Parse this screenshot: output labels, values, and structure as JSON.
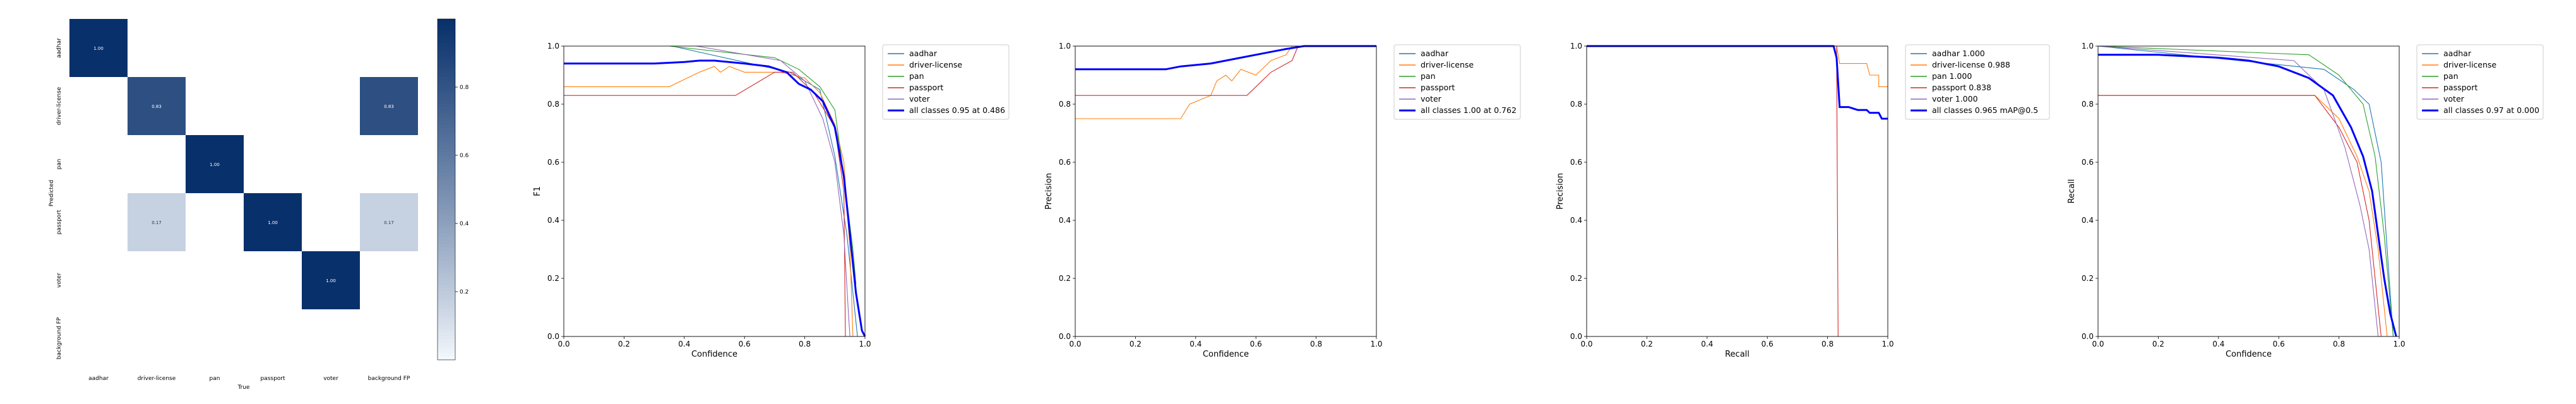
{
  "chart_data": [
    {
      "type": "heatmap",
      "xlabel": "True",
      "ylabel": "Predicted",
      "categories": [
        "aadhar",
        "driver-license",
        "pan",
        "passport",
        "voter",
        "background FP"
      ],
      "cells": [
        {
          "row": 0,
          "col": 0,
          "value": 1.0,
          "label": "1.00"
        },
        {
          "row": 1,
          "col": 1,
          "value": 0.83,
          "label": "0.83"
        },
        {
          "row": 1,
          "col": 5,
          "value": 0.83,
          "label": "0.83"
        },
        {
          "row": 2,
          "col": 2,
          "value": 1.0,
          "label": "1.00"
        },
        {
          "row": 3,
          "col": 1,
          "value": 0.17,
          "label": "0.17"
        },
        {
          "row": 3,
          "col": 3,
          "value": 1.0,
          "label": "1.00"
        },
        {
          "row": 3,
          "col": 5,
          "value": 0.17,
          "label": "0.17"
        },
        {
          "row": 4,
          "col": 4,
          "value": 1.0,
          "label": "1.00"
        }
      ],
      "colorbar": {
        "ticks": [
          "0.2",
          "0.4",
          "0.6",
          "0.8"
        ],
        "tick_values": [
          0.2,
          0.4,
          0.6,
          0.8
        ],
        "range": [
          0,
          1
        ]
      },
      "colors": {
        "low": "#f7fbff",
        "high": "#08306b"
      }
    },
    {
      "type": "line",
      "xlabel": "Confidence",
      "ylabel": "F1",
      "xlim": [
        0,
        1
      ],
      "ylim": [
        0,
        1
      ],
      "xticks": [
        "0.0",
        "0.2",
        "0.4",
        "0.6",
        "0.8",
        "1.0"
      ],
      "yticks": [
        "0.0",
        "0.2",
        "0.4",
        "0.6",
        "0.8",
        "1.0"
      ],
      "legend_position": "outside-right",
      "series": [
        {
          "name": "aadhar",
          "color": "#1f77b4",
          "points": [
            [
              0.36,
              1.0
            ],
            [
              0.75,
              0.91
            ],
            [
              0.85,
              0.85
            ],
            [
              0.9,
              0.62
            ],
            [
              0.94,
              0.35
            ],
            [
              0.96,
              0.15
            ],
            [
              0.975,
              0.0
            ]
          ]
        },
        {
          "name": "driver-license",
          "color": "#ff7f0e",
          "points": [
            [
              0,
              0.86
            ],
            [
              0.35,
              0.86
            ],
            [
              0.45,
              0.91
            ],
            [
              0.5,
              0.93
            ],
            [
              0.52,
              0.91
            ],
            [
              0.55,
              0.93
            ],
            [
              0.6,
              0.91
            ],
            [
              0.72,
              0.91
            ],
            [
              0.8,
              0.89
            ],
            [
              0.85,
              0.84
            ],
            [
              0.9,
              0.73
            ],
            [
              0.93,
              0.6
            ],
            [
              0.95,
              0.3
            ],
            [
              0.96,
              0.0
            ]
          ]
        },
        {
          "name": "pan",
          "color": "#2ca02c",
          "points": [
            [
              0.35,
              1.0
            ],
            [
              0.7,
              0.96
            ],
            [
              0.78,
              0.92
            ],
            [
              0.85,
              0.86
            ],
            [
              0.9,
              0.78
            ],
            [
              0.93,
              0.55
            ],
            [
              0.96,
              0.3
            ],
            [
              0.97,
              0.18
            ]
          ]
        },
        {
          "name": "passport",
          "color": "#d62728",
          "points": [
            [
              0,
              0.83
            ],
            [
              0.57,
              0.83
            ],
            [
              0.7,
              0.91
            ],
            [
              0.76,
              0.91
            ],
            [
              0.83,
              0.84
            ],
            [
              0.9,
              0.72
            ],
            [
              0.93,
              0.5
            ],
            [
              0.935,
              0.0
            ]
          ]
        },
        {
          "name": "voter",
          "color": "#9467bd",
          "points": [
            [
              0.44,
              1.0
            ],
            [
              0.72,
              0.95
            ],
            [
              0.8,
              0.88
            ],
            [
              0.86,
              0.75
            ],
            [
              0.9,
              0.6
            ],
            [
              0.93,
              0.35
            ],
            [
              0.945,
              0.08
            ],
            [
              0.95,
              0.0
            ]
          ]
        }
      ],
      "summary": {
        "name": "all classes 0.95 at 0.486",
        "color": "#0000ff",
        "points": [
          [
            0,
            0.94
          ],
          [
            0.1,
            0.94
          ],
          [
            0.2,
            0.94
          ],
          [
            0.3,
            0.94
          ],
          [
            0.4,
            0.945
          ],
          [
            0.45,
            0.95
          ],
          [
            0.5,
            0.95
          ],
          [
            0.6,
            0.94
          ],
          [
            0.68,
            0.93
          ],
          [
            0.74,
            0.91
          ],
          [
            0.78,
            0.87
          ],
          [
            0.82,
            0.85
          ],
          [
            0.86,
            0.81
          ],
          [
            0.9,
            0.72
          ],
          [
            0.93,
            0.55
          ],
          [
            0.95,
            0.35
          ],
          [
            0.97,
            0.15
          ],
          [
            0.99,
            0.02
          ],
          [
            1.0,
            0.0
          ]
        ]
      }
    },
    {
      "type": "line",
      "xlabel": "Confidence",
      "ylabel": "Precision",
      "xlim": [
        0,
        1
      ],
      "ylim": [
        0,
        1
      ],
      "xticks": [
        "0.0",
        "0.2",
        "0.4",
        "0.6",
        "0.8",
        "1.0"
      ],
      "yticks": [
        "0.0",
        "0.2",
        "0.4",
        "0.6",
        "0.8",
        "1.0"
      ],
      "legend_position": "outside-right",
      "series": [
        {
          "name": "aadhar",
          "color": "#1f77b4",
          "points": [
            [
              0,
              1.0
            ],
            [
              1.0,
              1.0
            ]
          ]
        },
        {
          "name": "driver-license",
          "color": "#ff7f0e",
          "points": [
            [
              0,
              0.75
            ],
            [
              0.35,
              0.75
            ],
            [
              0.38,
              0.8
            ],
            [
              0.45,
              0.83
            ],
            [
              0.47,
              0.88
            ],
            [
              0.5,
              0.9
            ],
            [
              0.52,
              0.88
            ],
            [
              0.55,
              0.92
            ],
            [
              0.6,
              0.9
            ],
            [
              0.65,
              0.95
            ],
            [
              0.7,
              0.97
            ],
            [
              0.72,
              1.0
            ],
            [
              1.0,
              1.0
            ]
          ]
        },
        {
          "name": "pan",
          "color": "#2ca02c",
          "points": [
            [
              0,
              1.0
            ],
            [
              1.0,
              1.0
            ]
          ]
        },
        {
          "name": "passport",
          "color": "#d62728",
          "points": [
            [
              0,
              0.83
            ],
            [
              0.57,
              0.83
            ],
            [
              0.65,
              0.91
            ],
            [
              0.72,
              0.95
            ],
            [
              0.74,
              1.0
            ],
            [
              1.0,
              1.0
            ]
          ]
        },
        {
          "name": "voter",
          "color": "#9467bd",
          "points": [
            [
              0,
              1.0
            ],
            [
              1.0,
              1.0
            ]
          ]
        }
      ],
      "summary": {
        "name": "all classes 1.00 at 0.762",
        "color": "#0000ff",
        "points": [
          [
            0,
            0.92
          ],
          [
            0.3,
            0.92
          ],
          [
            0.35,
            0.93
          ],
          [
            0.45,
            0.94
          ],
          [
            0.55,
            0.96
          ],
          [
            0.65,
            0.98
          ],
          [
            0.7,
            0.99
          ],
          [
            0.76,
            1.0
          ],
          [
            1.0,
            1.0
          ]
        ]
      }
    },
    {
      "type": "line",
      "xlabel": "Recall",
      "ylabel": "Precision",
      "xlim": [
        0,
        1
      ],
      "ylim": [
        0,
        1
      ],
      "xticks": [
        "0.0",
        "0.2",
        "0.4",
        "0.6",
        "0.8",
        "1.0"
      ],
      "yticks": [
        "0.0",
        "0.2",
        "0.4",
        "0.6",
        "0.8",
        "1.0"
      ],
      "legend_position": "outside-right",
      "series": [
        {
          "name": "aadhar 1.000",
          "color": "#1f77b4",
          "points": [
            [
              0,
              1.0
            ],
            [
              1.0,
              1.0
            ]
          ]
        },
        {
          "name": "driver-license 0.988",
          "color": "#ff7f0e",
          "points": [
            [
              0,
              1.0
            ],
            [
              0.83,
              1.0
            ],
            [
              0.84,
              0.94
            ],
            [
              0.93,
              0.94
            ],
            [
              0.94,
              0.9
            ],
            [
              0.97,
              0.9
            ],
            [
              0.97,
              0.86
            ],
            [
              1.0,
              0.86
            ]
          ]
        },
        {
          "name": "pan 1.000",
          "color": "#2ca02c",
          "points": [
            [
              0,
              1.0
            ],
            [
              1.0,
              1.0
            ]
          ]
        },
        {
          "name": "passport 0.838",
          "color": "#d62728",
          "points": [
            [
              0,
              1.0
            ],
            [
              0.83,
              1.0
            ],
            [
              0.835,
              0.0
            ]
          ]
        },
        {
          "name": "voter 1.000",
          "color": "#9467bd",
          "points": [
            [
              0,
              1.0
            ],
            [
              1.0,
              1.0
            ]
          ]
        }
      ],
      "summary": {
        "name": "all classes 0.965 mAP@0.5",
        "color": "#0000ff",
        "points": [
          [
            0,
            1.0
          ],
          [
            0.8,
            1.0
          ],
          [
            0.82,
            1.0
          ],
          [
            0.83,
            0.96
          ],
          [
            0.84,
            0.79
          ],
          [
            0.87,
            0.79
          ],
          [
            0.9,
            0.78
          ],
          [
            0.93,
            0.78
          ],
          [
            0.94,
            0.77
          ],
          [
            0.97,
            0.77
          ],
          [
            0.98,
            0.75
          ],
          [
            1.0,
            0.75
          ]
        ]
      }
    },
    {
      "type": "line",
      "xlabel": "Confidence",
      "ylabel": "Recall",
      "xlim": [
        0,
        1
      ],
      "ylim": [
        0,
        1
      ],
      "xticks": [
        "0.0",
        "0.2",
        "0.4",
        "0.6",
        "0.8",
        "1.0"
      ],
      "yticks": [
        "0.0",
        "0.2",
        "0.4",
        "0.6",
        "0.8",
        "1.0"
      ],
      "legend_position": "outside-right",
      "series": [
        {
          "name": "aadhar",
          "color": "#1f77b4",
          "points": [
            [
              0,
              1.0
            ],
            [
              0.75,
              0.92
            ],
            [
              0.85,
              0.85
            ],
            [
              0.9,
              0.8
            ],
            [
              0.94,
              0.6
            ],
            [
              0.96,
              0.3
            ],
            [
              0.98,
              0.0
            ]
          ]
        },
        {
          "name": "driver-license",
          "color": "#ff7f0e",
          "points": [
            [
              0,
              0.83
            ],
            [
              0.72,
              0.83
            ],
            [
              0.8,
              0.75
            ],
            [
              0.86,
              0.62
            ],
            [
              0.9,
              0.5
            ],
            [
              0.93,
              0.3
            ],
            [
              0.96,
              0.0
            ]
          ]
        },
        {
          "name": "pan",
          "color": "#2ca02c",
          "points": [
            [
              0,
              1.0
            ],
            [
              0.7,
              0.97
            ],
            [
              0.8,
              0.9
            ],
            [
              0.88,
              0.8
            ],
            [
              0.92,
              0.62
            ],
            [
              0.95,
              0.35
            ],
            [
              0.98,
              0.0
            ]
          ]
        },
        {
          "name": "passport",
          "color": "#d62728",
          "points": [
            [
              0,
              0.83
            ],
            [
              0.72,
              0.83
            ],
            [
              0.8,
              0.72
            ],
            [
              0.86,
              0.6
            ],
            [
              0.9,
              0.4
            ],
            [
              0.93,
              0.1
            ],
            [
              0.94,
              0.0
            ]
          ]
        },
        {
          "name": "voter",
          "color": "#9467bd",
          "points": [
            [
              0,
              1.0
            ],
            [
              0.65,
              0.95
            ],
            [
              0.75,
              0.85
            ],
            [
              0.82,
              0.65
            ],
            [
              0.87,
              0.45
            ],
            [
              0.9,
              0.3
            ],
            [
              0.92,
              0.1
            ],
            [
              0.93,
              0.0
            ]
          ]
        }
      ],
      "summary": {
        "name": "all classes 0.97 at 0.000",
        "color": "#0000ff",
        "points": [
          [
            0,
            0.97
          ],
          [
            0.2,
            0.97
          ],
          [
            0.4,
            0.96
          ],
          [
            0.5,
            0.95
          ],
          [
            0.6,
            0.93
          ],
          [
            0.7,
            0.89
          ],
          [
            0.78,
            0.83
          ],
          [
            0.84,
            0.72
          ],
          [
            0.88,
            0.62
          ],
          [
            0.91,
            0.5
          ],
          [
            0.93,
            0.35
          ],
          [
            0.95,
            0.2
          ],
          [
            0.97,
            0.08
          ],
          [
            0.99,
            0.0
          ]
        ]
      }
    }
  ]
}
